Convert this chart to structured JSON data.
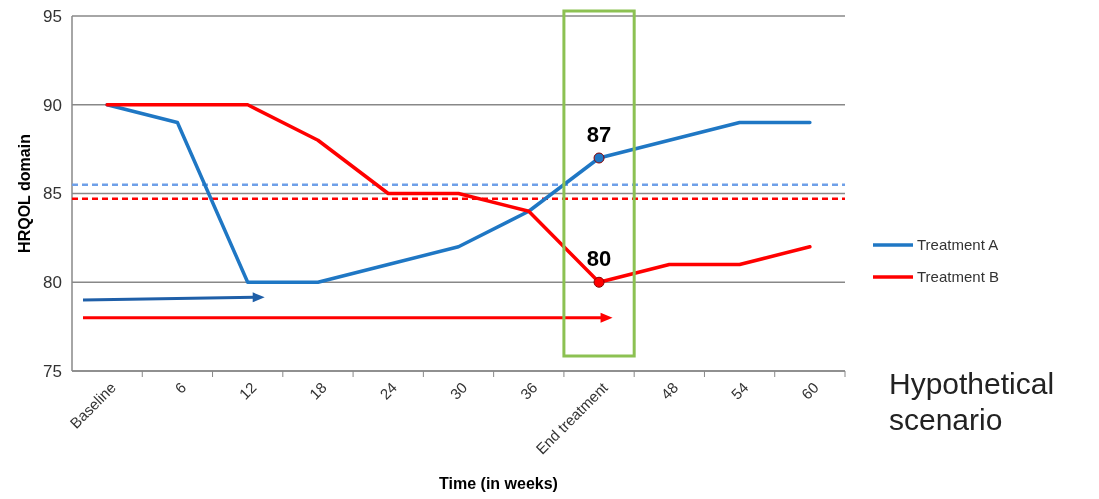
{
  "chart_data": {
    "type": "line",
    "xlabel": "Time (in weeks)",
    "ylabel": "HRQOL domain",
    "categories": [
      "Baseline",
      "6",
      "12",
      "18",
      "24",
      "30",
      "36",
      "End treatment",
      "48",
      "54",
      "60"
    ],
    "series": [
      {
        "name": "Treatment A",
        "color": "#1f77c4",
        "values": [
          90,
          89,
          80,
          80,
          81,
          82,
          84,
          87,
          88,
          89,
          89
        ]
      },
      {
        "name": "Treatment B",
        "color": "#ff0000",
        "values": [
          90,
          90,
          90,
          88,
          85,
          85,
          84,
          80,
          81,
          81,
          82
        ]
      }
    ],
    "ylim": [
      75,
      95
    ],
    "yticks": [
      75,
      80,
      85,
      90,
      95
    ],
    "grid": "y",
    "legend": "right",
    "ref_lines": [
      {
        "axis": "y",
        "value": 85.5,
        "color": "#6fa0e8",
        "line_style": "dashed"
      },
      {
        "axis": "y",
        "value": 84.7,
        "color": "#ff0000",
        "line_style": "dashed"
      }
    ],
    "annotations": [
      {
        "text": "87",
        "x": "End treatment",
        "y": 87
      },
      {
        "text": "80",
        "x": "End treatment",
        "y": 80
      },
      "Hypothetical scenario"
    ]
  }
}
